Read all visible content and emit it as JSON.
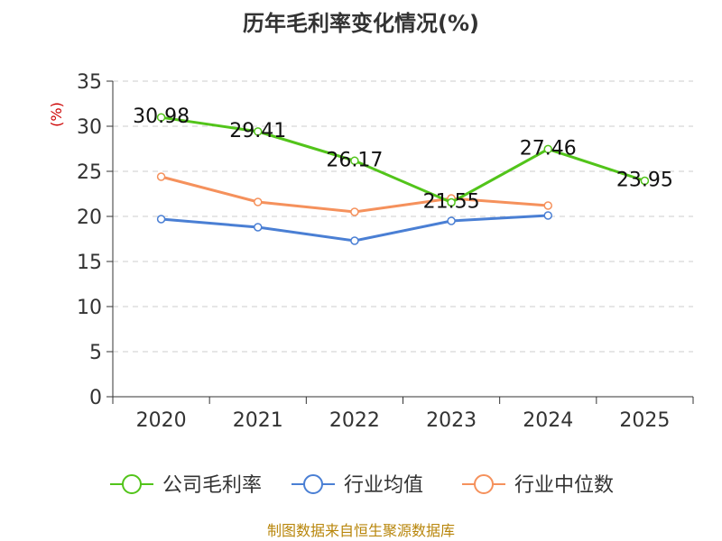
{
  "chart_data": {
    "type": "line",
    "title": "历年毛利率变化情况(%)",
    "unit_label": "(%)",
    "categories": [
      "2020",
      "2021",
      "2022",
      "2023",
      "2024",
      "2025"
    ],
    "y_ticks": [
      "0",
      "5",
      "10",
      "15",
      "20",
      "25",
      "30",
      "35"
    ],
    "ylim": [
      0,
      35
    ],
    "grid": true,
    "series": [
      {
        "name": "公司毛利率",
        "color": "#52c41a",
        "values": [
          30.98,
          29.41,
          26.17,
          21.55,
          27.46,
          23.95
        ],
        "labels": [
          "30.98",
          "29.41",
          "26.17",
          "21.55",
          "27.46",
          "23.95"
        ]
      },
      {
        "name": "行业均值",
        "color": "#4a7fd4",
        "values": [
          19.7,
          18.8,
          17.3,
          19.5,
          20.1,
          null
        ]
      },
      {
        "name": "行业中位数",
        "color": "#f5915c",
        "values": [
          24.4,
          21.6,
          20.5,
          22.0,
          21.2,
          null
        ]
      }
    ],
    "legend_position": "bottom",
    "source": "制图数据来自恒生聚源数据库"
  }
}
